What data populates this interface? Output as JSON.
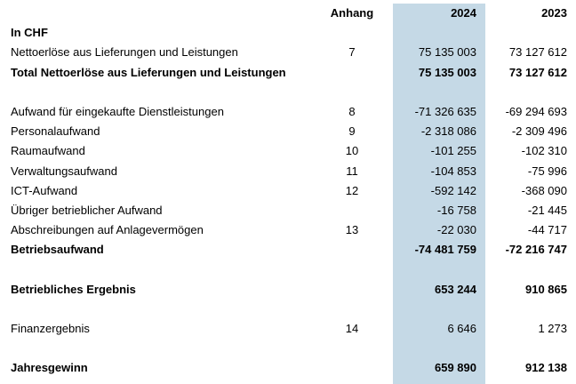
{
  "header": {
    "note_label": "Anhang",
    "year_current": "2024",
    "year_prior": "2023"
  },
  "rows": [
    {
      "label": "In CHF",
      "note": "",
      "current": "",
      "prior": "",
      "bold": true
    },
    {
      "label": "Nettoerlöse aus Lieferungen und Leistungen",
      "note": "7",
      "current": "75 135 003",
      "prior": "73 127 612",
      "bold": false
    },
    {
      "label": "Total Nettoerlöse aus Lieferungen und Leistungen",
      "note": "",
      "current": "75 135 003",
      "prior": "73 127 612",
      "bold": true
    },
    {
      "label": "",
      "note": "",
      "current": "",
      "prior": "",
      "bold": false
    },
    {
      "label": "Aufwand für eingekaufte Dienstleistungen",
      "note": "8",
      "current": "-71 326 635",
      "prior": "-69 294 693",
      "bold": false
    },
    {
      "label": "Personalaufwand",
      "note": "9",
      "current": "-2 318 086",
      "prior": "-2 309 496",
      "bold": false
    },
    {
      "label": "Raumaufwand",
      "note": "10",
      "current": "-101 255",
      "prior": "-102 310",
      "bold": false
    },
    {
      "label": "Verwaltungsaufwand",
      "note": "11",
      "current": "-104 853",
      "prior": "-75 996",
      "bold": false
    },
    {
      "label": "ICT-Aufwand",
      "note": "12",
      "current": "-592 142",
      "prior": "-368 090",
      "bold": false
    },
    {
      "label": "Übriger betrieblicher Aufwand",
      "note": "",
      "current": "-16 758",
      "prior": "-21 445",
      "bold": false
    },
    {
      "label": "Abschreibungen auf Anlagevermögen",
      "note": "13",
      "current": "-22 030",
      "prior": "-44 717",
      "bold": false
    },
    {
      "label": "Betriebsaufwand",
      "note": "",
      "current": "-74 481 759",
      "prior": "-72 216 747",
      "bold": true
    },
    {
      "label": "",
      "note": "",
      "current": "",
      "prior": "",
      "bold": false
    },
    {
      "label": "Betriebliches Ergebnis",
      "note": "",
      "current": "653 244",
      "prior": "910 865",
      "bold": true
    },
    {
      "label": "",
      "note": "",
      "current": "",
      "prior": "",
      "bold": false
    },
    {
      "label": "Finanzergebnis",
      "note": "14",
      "current": "6 646",
      "prior": "1 273",
      "bold": false
    },
    {
      "label": "",
      "note": "",
      "current": "",
      "prior": "",
      "bold": false
    },
    {
      "label": "Jahresgewinn",
      "note": "",
      "current": "659 890",
      "prior": "912 138",
      "bold": true
    }
  ]
}
